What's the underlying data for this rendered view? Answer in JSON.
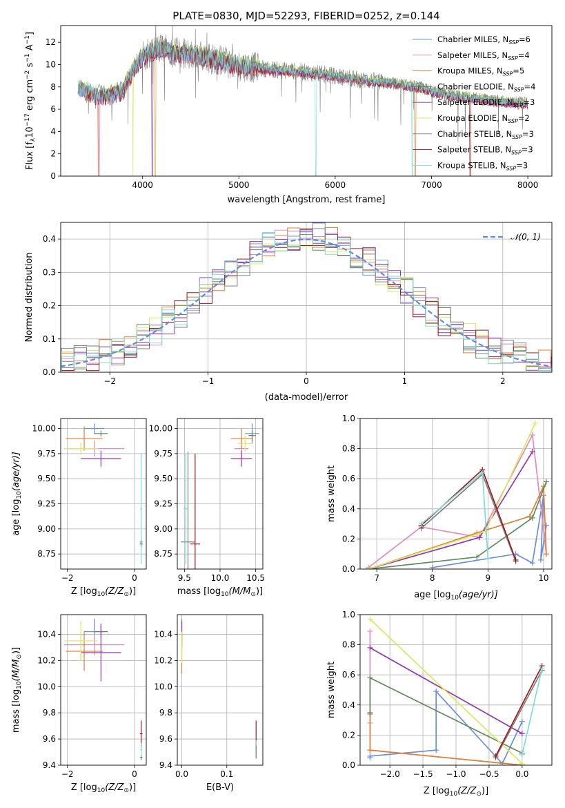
{
  "figure_title": "PLATE=0830, MJD=52293, FIBERID=0252, z=0.144",
  "colors": {
    "chabrier_miles": "#6a8fd8",
    "salpeter_miles": "#e08bbf",
    "kroupa_miles": "#e07f36",
    "chabrier_elodie": "#5f8a5f",
    "salpeter_elodie": "#9535b0",
    "kroupa_elodie": "#d8e860",
    "chabrier_stelib": "#7f7f7f",
    "salpeter_stelib": "#9b1c1c",
    "kroupa_stelib": "#80dada",
    "normal": "#5b8ee0",
    "grid": "#b0b0b0"
  },
  "chart_data": [
    {
      "type": "line",
      "panel": "spectrum",
      "xlabel": "wavelength [Angstrom, rest frame]",
      "ylabel": "Flux [f",
      "ylabel_rest": "10",
      "ylabel_tail": " erg cm",
      "ylabel_tail2": " s",
      "ylabel_tail3": " A",
      "xlim": [
        3150,
        8250
      ],
      "ylim": [
        0,
        13.5
      ],
      "xticks": [
        "4000",
        "5000",
        "6000",
        "7000",
        "8000"
      ],
      "yticks": [
        "0",
        "2",
        "4",
        "6",
        "8",
        "10",
        "12"
      ],
      "grid": false,
      "legend_position": "top-right",
      "legend": [
        {
          "name": "Chabrier MILES, N",
          "sub": "SSP",
          "val": "=6"
        },
        {
          "name": "Salpeter MILES, N",
          "sub": "SSP",
          "val": "=4"
        },
        {
          "name": "Kroupa MILES, N",
          "sub": "SSP",
          "val": "=5"
        },
        {
          "name": "Chabrier ELODIE, N",
          "sub": "SSP",
          "val": "=4"
        },
        {
          "name": "Salpeter ELODIE, N",
          "sub": "SSP",
          "val": "=3"
        },
        {
          "name": "Kroupa ELODIE, N",
          "sub": "SSP",
          "val": "=2"
        },
        {
          "name": "Chabrier STELIB, N",
          "sub": "SSP",
          "val": "=3"
        },
        {
          "name": "Salpeter STELIB, N",
          "sub": "SSP",
          "val": "=3"
        },
        {
          "name": "Kroupa STELIB, N",
          "sub": "SSP",
          "val": "=3"
        }
      ],
      "continuum": [
        [
          3330,
          8.0
        ],
        [
          3500,
          7.3
        ],
        [
          3650,
          7.2
        ],
        [
          3800,
          7.7
        ],
        [
          3900,
          9.5
        ],
        [
          4000,
          10.8
        ],
        [
          4200,
          11.5
        ],
        [
          4400,
          11.0
        ],
        [
          4600,
          10.8
        ],
        [
          4800,
          10.4
        ],
        [
          5000,
          9.9
        ],
        [
          5300,
          9.6
        ],
        [
          5600,
          9.4
        ],
        [
          5900,
          9.1
        ],
        [
          6200,
          8.7
        ],
        [
          6500,
          8.4
        ],
        [
          6700,
          8.2
        ],
        [
          6900,
          7.9
        ],
        [
          7100,
          7.4
        ],
        [
          7400,
          7.0
        ],
        [
          7800,
          6.6
        ],
        [
          8000,
          6.5
        ]
      ]
    },
    {
      "type": "histogram",
      "panel": "residuals",
      "xlabel": "(data-model)/error",
      "ylabel": "Normed distribution",
      "xlim": [
        -2.5,
        2.5
      ],
      "ylim": [
        0,
        0.45
      ],
      "xticks": [
        "−2",
        "−1",
        "0",
        "1",
        "2"
      ],
      "yticks": [
        "0.0",
        "0.1",
        "0.2",
        "0.3",
        "0.4"
      ],
      "grid": true,
      "legend_position": "top-right",
      "legend": [
        "𝒩(0, 1)"
      ],
      "bins": 41
    },
    {
      "type": "scatter",
      "panel": "age-vs-Z",
      "xlabel": "Z [log",
      "xlabel_sub": "10",
      "xlabel_tail": "(Z/Z",
      "xlabel_end": ")]",
      "ylabel": "age  [log",
      "ylabel_sub": "10",
      "ylabel_tail": "(age/yr)]",
      "xlim": [
        -2.2,
        0.35
      ],
      "ylim": [
        8.6,
        10.1
      ],
      "xticks": [
        "−2",
        "0"
      ],
      "yticks": [
        "8.75",
        "9.00",
        "9.25",
        "9.50",
        "9.75",
        "10.00"
      ],
      "grid": true,
      "points": [
        {
          "s": "chabrier_miles",
          "x": -1.2,
          "y": 10.0,
          "xe": 0.3,
          "ye": 0.05
        },
        {
          "s": "salpeter_miles",
          "x": -1.2,
          "y": 9.8,
          "xe": 0.9,
          "ye": 0.08
        },
        {
          "s": "kroupa_miles",
          "x": -1.5,
          "y": 9.9,
          "xe": 0.55,
          "ye": 0.12
        },
        {
          "s": "chabrier_elodie",
          "x": -1.0,
          "y": 9.95,
          "xe": 0.2,
          "ye": 0.03
        },
        {
          "s": "salpeter_elodie",
          "x": -1.0,
          "y": 9.7,
          "xe": 0.6,
          "ye": 0.08
        },
        {
          "s": "kroupa_elodie",
          "x": -1.6,
          "y": 9.8,
          "xe": 0.5,
          "ye": 0.06
        },
        {
          "s": "chabrier_stelib",
          "x": 0.2,
          "y": 8.87,
          "xe": 0.04,
          "ye": 0.02
        },
        {
          "s": "salpeter_stelib",
          "x": 0.2,
          "y": 8.85,
          "xe": 0.04,
          "ye": 0.03
        },
        {
          "s": "kroupa_stelib",
          "x": 0.2,
          "y": 9.2,
          "xe": 0.03,
          "ye": 0.55
        }
      ]
    },
    {
      "type": "scatter",
      "panel": "age-vs-mass",
      "xlabel": "mass [log",
      "xlabel_sub": "10",
      "xlabel_tail": "(M/M",
      "xlabel_end": ")]",
      "xlim": [
        9.4,
        10.6
      ],
      "ylim": [
        8.6,
        10.1
      ],
      "xticks": [
        "9.5",
        "10.0",
        "10.5"
      ],
      "yticks": [
        "8.75",
        "9.00",
        "9.25",
        "9.50",
        "9.75",
        "10.00"
      ],
      "grid": true,
      "points": [
        {
          "s": "chabrier_miles",
          "x": 10.45,
          "y": 9.95,
          "xe": 0.1,
          "ye": 0.1
        },
        {
          "s": "salpeter_miles",
          "x": 10.3,
          "y": 9.8,
          "xe": 0.1,
          "ye": 0.1
        },
        {
          "s": "kroupa_miles",
          "x": 10.3,
          "y": 9.9,
          "xe": 0.15,
          "ye": 0.1
        },
        {
          "s": "chabrier_elodie",
          "x": 10.45,
          "y": 9.93,
          "xe": 0.05,
          "ye": 0.05
        },
        {
          "s": "salpeter_elodie",
          "x": 10.3,
          "y": 9.7,
          "xe": 0.15,
          "ye": 0.08
        },
        {
          "s": "kroupa_elodie",
          "x": 10.35,
          "y": 9.85,
          "xe": 0.1,
          "ye": 0.08
        },
        {
          "s": "chabrier_stelib",
          "x": 9.55,
          "y": 8.87,
          "xe": 0.1,
          "ye": 0.9
        },
        {
          "s": "salpeter_stelib",
          "x": 9.65,
          "y": 8.85,
          "xe": 0.07,
          "ye": 0.9
        },
        {
          "s": "kroupa_stelib",
          "x": 9.52,
          "y": 9.2,
          "xe": 0.03,
          "ye": 0.55
        }
      ]
    },
    {
      "type": "line",
      "panel": "weight-vs-age",
      "xlabel": "age  [log",
      "xlabel_sub": "10",
      "xlabel_tail": "(age/yr)]",
      "ylabel": "mass weight",
      "xlim": [
        6.7,
        10.15
      ],
      "ylim": [
        0,
        1
      ],
      "xticks": [
        "7",
        "8",
        "9",
        "10"
      ],
      "yticks": [
        "0.0",
        "0.2",
        "0.4",
        "0.6",
        "0.8",
        "1.0"
      ],
      "grid": true,
      "series": [
        {
          "s": "chabrier_miles",
          "pts": [
            [
              8.0,
              0.01
            ],
            [
              9.5,
              0.1
            ],
            [
              9.8,
              0.04
            ],
            [
              10.0,
              0.49
            ],
            [
              9.95,
              0.06
            ],
            [
              10.05,
              0.29
            ]
          ]
        },
        {
          "s": "salpeter_miles",
          "pts": [
            [
              6.85,
              0.01
            ],
            [
              7.8,
              0.28
            ],
            [
              8.85,
              0.21
            ],
            [
              9.8,
              0.89
            ],
            [
              10.05,
              0.1
            ]
          ]
        },
        {
          "s": "kroupa_miles",
          "pts": [
            [
              6.85,
              0.0
            ],
            [
              8.8,
              0.24
            ],
            [
              9.75,
              0.35
            ],
            [
              10.0,
              0.55
            ],
            [
              10.05,
              0.1
            ]
          ]
        },
        {
          "s": "chabrier_elodie",
          "pts": [
            [
              6.85,
              0.0
            ],
            [
              8.8,
              0.08
            ],
            [
              9.8,
              0.34
            ],
            [
              10.05,
              0.58
            ]
          ]
        },
        {
          "s": "salpeter_elodie",
          "pts": [
            [
              6.85,
              0.0
            ],
            [
              8.85,
              0.21
            ],
            [
              9.8,
              0.78
            ]
          ]
        },
        {
          "s": "kroupa_elodie",
          "pts": [
            [
              6.85,
              0.0
            ],
            [
              8.95,
              0.25
            ],
            [
              9.85,
              0.97
            ]
          ]
        },
        {
          "s": "chabrier_stelib",
          "pts": [
            [
              7.8,
              0.27
            ],
            [
              8.9,
              0.63
            ],
            [
              9.5,
              0.05
            ]
          ]
        },
        {
          "s": "salpeter_stelib",
          "pts": [
            [
              7.8,
              0.29
            ],
            [
              8.9,
              0.66
            ],
            [
              9.5,
              0.06
            ]
          ]
        },
        {
          "s": "kroupa_stelib",
          "pts": [
            [
              7.8,
              0.3
            ],
            [
              8.9,
              0.64
            ],
            [
              9.0,
              0.07
            ]
          ]
        }
      ]
    },
    {
      "type": "scatter",
      "panel": "mass-vs-Z",
      "xlabel": "Z [log",
      "xlabel_sub": "10",
      "xlabel_tail": "(Z/Z",
      "xlabel_end": ")]",
      "ylabel": "mass [log",
      "ylabel_sub": "10",
      "ylabel_tail": "(M/M",
      "ylabel_end": ")]",
      "xlim": [
        -2.2,
        0.35
      ],
      "ylim": [
        9.4,
        10.55
      ],
      "xticks": [
        "−2",
        "0"
      ],
      "yticks": [
        "9.4",
        "9.6",
        "9.8",
        "10.0",
        "10.2",
        "10.4"
      ],
      "grid": true,
      "points": [
        {
          "s": "chabrier_miles",
          "x": -1.2,
          "y": 10.42,
          "xe": 0.3,
          "ye": 0.1
        },
        {
          "s": "salpeter_miles",
          "x": -1.2,
          "y": 10.32,
          "xe": 0.9,
          "ye": 0.08
        },
        {
          "s": "kroupa_miles",
          "x": -1.5,
          "y": 10.27,
          "xe": 0.55,
          "ye": 0.15
        },
        {
          "s": "chabrier_elodie",
          "x": -1.0,
          "y": 10.42,
          "xe": 0.2,
          "ye": 0.05
        },
        {
          "s": "salpeter_elodie",
          "x": -1.0,
          "y": 10.26,
          "xe": 0.6,
          "ye": 0.22
        },
        {
          "s": "kroupa_elodie",
          "x": -1.6,
          "y": 10.35,
          "xe": 0.5,
          "ye": 0.15
        },
        {
          "s": "chabrier_stelib",
          "x": 0.2,
          "y": 9.46,
          "xe": 0.04,
          "ye": 0.02
        },
        {
          "s": "salpeter_stelib",
          "x": 0.2,
          "y": 9.64,
          "xe": 0.04,
          "ye": 0.1
        },
        {
          "s": "kroupa_stelib",
          "x": 0.2,
          "y": 9.52,
          "xe": 0.03,
          "ye": 0.05
        }
      ]
    },
    {
      "type": "scatter",
      "panel": "mass-vs-ebv",
      "xlabel": "E(B-V)",
      "xlim": [
        -0.01,
        0.18
      ],
      "ylim": [
        9.4,
        10.55
      ],
      "xticks": [
        "0.0",
        "0.1"
      ],
      "yticks": [
        "9.4",
        "9.6",
        "9.8",
        "10.0",
        "10.2",
        "10.4"
      ],
      "grid": true,
      "points": [
        {
          "s": "chabrier_miles",
          "x": 0.0,
          "y": 10.42,
          "xe": 0,
          "ye": 0.1
        },
        {
          "s": "kroupa_miles",
          "x": 0.0,
          "y": 10.25,
          "xe": 0,
          "ye": 0.15
        },
        {
          "s": "salpeter_elodie",
          "x": 0.0,
          "y": 10.4,
          "xe": 0,
          "ye": 0.1
        },
        {
          "s": "kroupa_elodie",
          "x": 0.0,
          "y": 10.3,
          "xe": 0,
          "ye": 0.12
        },
        {
          "s": "salpeter_stelib",
          "x": 0.165,
          "y": 9.64,
          "xe": 0,
          "ye": 0.1
        },
        {
          "s": "kroupa_stelib",
          "x": 0.165,
          "y": 9.52,
          "xe": 0,
          "ye": 0.07
        },
        {
          "s": "chabrier_stelib",
          "x": 0.165,
          "y": 9.5,
          "xe": 0,
          "ye": 0.05
        }
      ]
    },
    {
      "type": "line",
      "panel": "weight-vs-Z",
      "xlabel": "Z [log",
      "xlabel_sub": "10",
      "xlabel_tail": "(Z/Z",
      "xlabel_end": ")]",
      "ylabel": "mass weight",
      "xlim": [
        -2.45,
        0.45
      ],
      "ylim": [
        0,
        1
      ],
      "xticks": [
        "−2.0",
        "−1.5",
        "−1.0",
        "−0.5",
        "0.0"
      ],
      "yticks": [
        "0.0",
        "0.2",
        "0.4",
        "0.6",
        "0.8",
        "1.0"
      ],
      "grid": true,
      "series": [
        {
          "s": "chabrier_miles",
          "pts": [
            [
              -2.3,
              0.05
            ],
            [
              -2.3,
              0.06
            ],
            [
              -1.3,
              0.1
            ],
            [
              -1.3,
              0.49
            ],
            [
              -0.3,
              0.01
            ],
            [
              0.0,
              0.29
            ]
          ]
        },
        {
          "s": "salpeter_miles",
          "pts": [
            [
              -2.3,
              0.89
            ],
            [
              -2.3,
              0.28
            ],
            [
              -2.3,
              0.1
            ],
            [
              0.0,
              0.0
            ]
          ]
        },
        {
          "s": "kroupa_miles",
          "pts": [
            [
              -2.3,
              0.35
            ],
            [
              -2.3,
              0.1
            ],
            [
              0.0,
              0.0
            ]
          ]
        },
        {
          "s": "chabrier_elodie",
          "pts": [
            [
              -2.3,
              0.34
            ],
            [
              -2.3,
              0.58
            ],
            [
              0.0,
              0.08
            ]
          ]
        },
        {
          "s": "salpeter_elodie",
          "pts": [
            [
              -2.3,
              0.78
            ],
            [
              0.0,
              0.21
            ]
          ]
        },
        {
          "s": "kroupa_elodie",
          "pts": [
            [
              -2.3,
              0.97
            ],
            [
              0.0,
              0.01
            ]
          ]
        },
        {
          "s": "chabrier_stelib",
          "pts": [
            [
              -0.4,
              0.05
            ],
            [
              0.3,
              0.63
            ]
          ]
        },
        {
          "s": "salpeter_stelib",
          "pts": [
            [
              -0.4,
              0.06
            ],
            [
              0.3,
              0.66
            ]
          ]
        },
        {
          "s": "kroupa_stelib",
          "pts": [
            [
              0.0,
              0.07
            ],
            [
              0.3,
              0.64
            ]
          ]
        }
      ]
    }
  ]
}
